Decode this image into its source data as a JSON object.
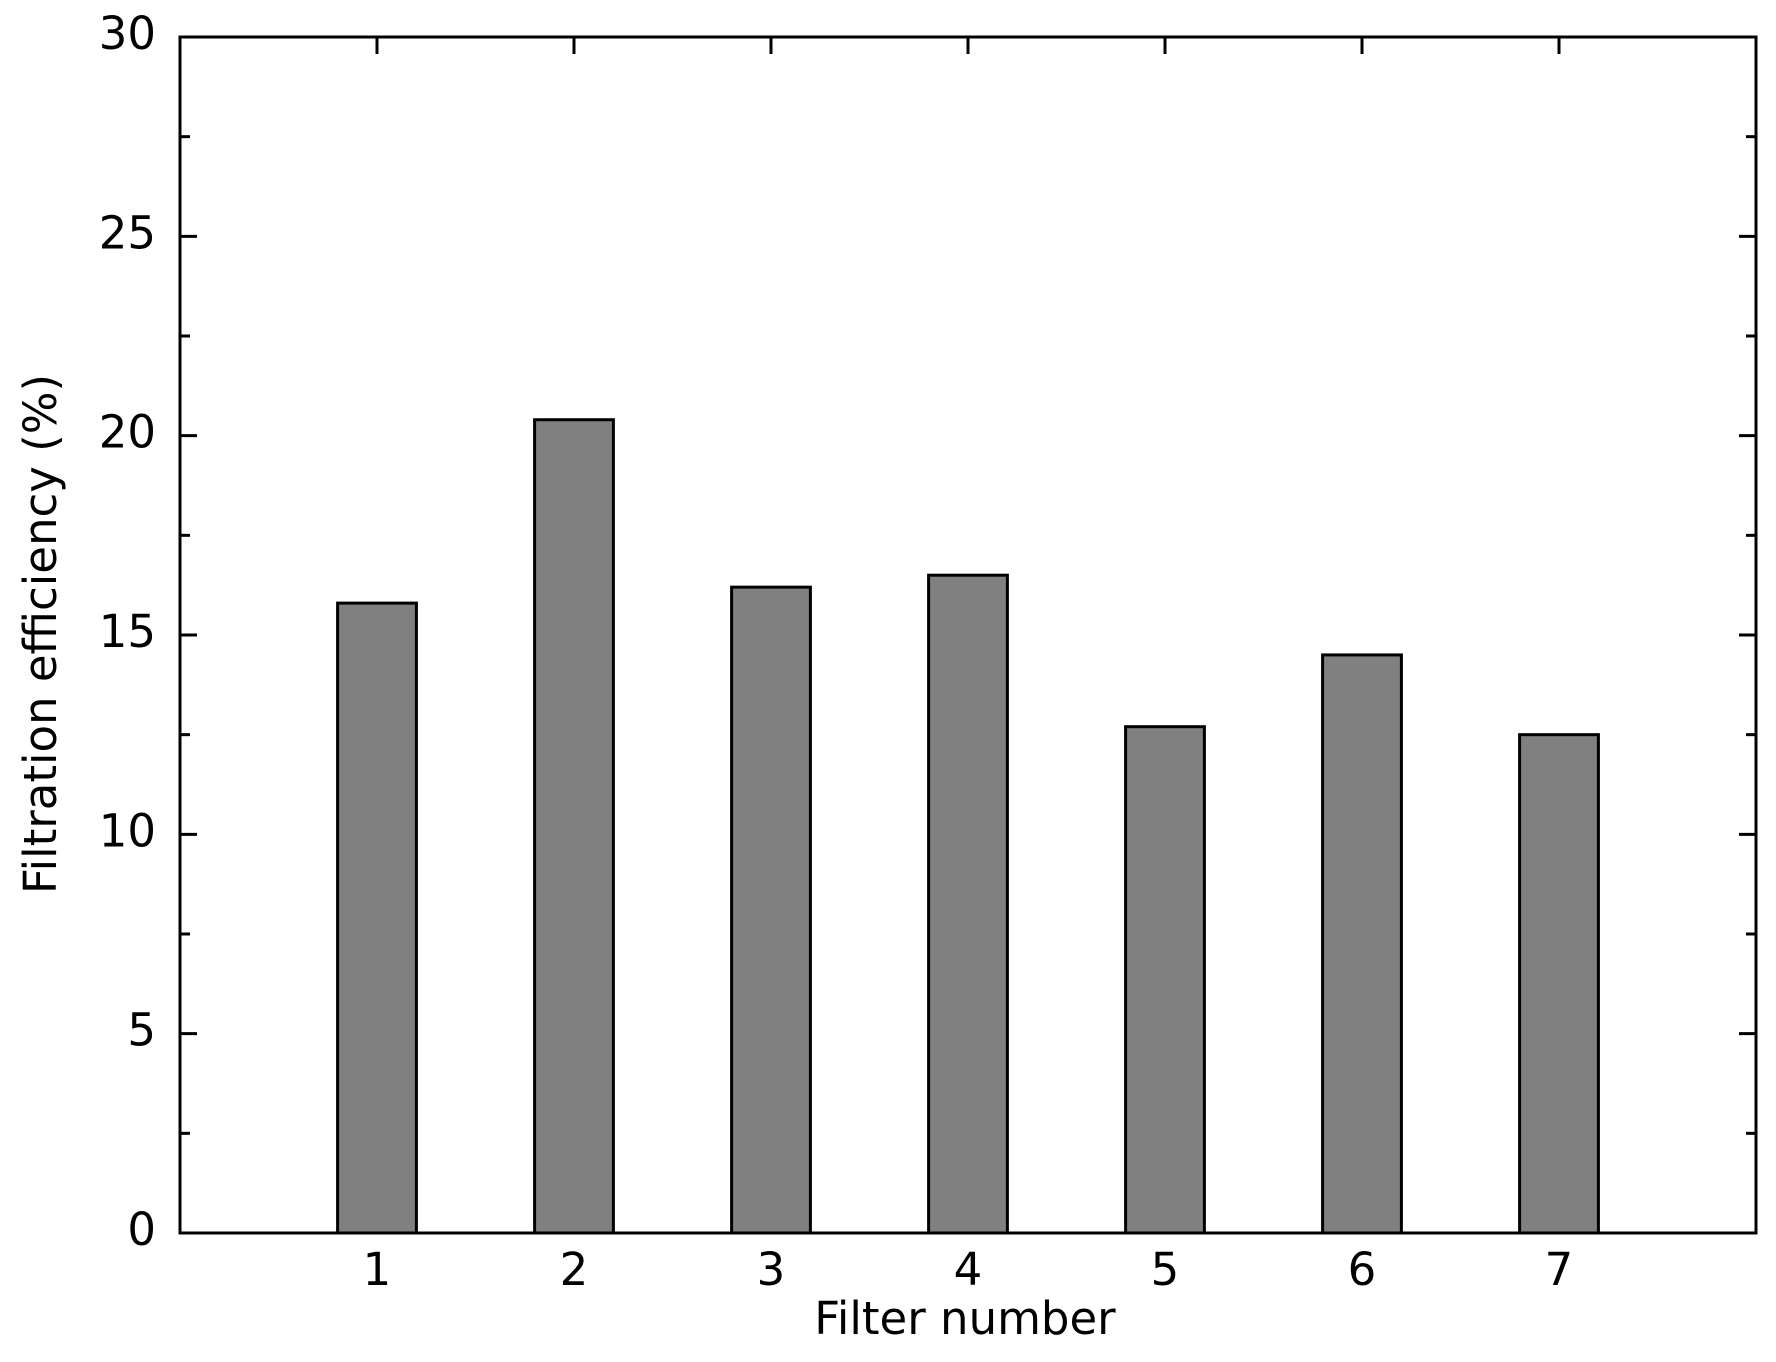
{
  "chart_data": {
    "type": "bar",
    "x_label": "Filter number",
    "y_label": "Filtration efficiency (%)",
    "x": [
      1,
      2,
      3,
      4,
      5,
      6,
      7
    ],
    "values": [
      15.8,
      20.4,
      16.2,
      16.5,
      12.7,
      14.5,
      12.5
    ],
    "color": "#808080",
    "xlim": [
      0,
      8
    ],
    "xticks": [
      1,
      2,
      3,
      4,
      5,
      6,
      7
    ],
    "ylim": [
      0,
      30
    ],
    "yticks": [
      0,
      5,
      10,
      15,
      20,
      25,
      30
    ],
    "yminorticks": [
      2.5,
      7.5,
      12.5,
      17.5,
      22.5,
      27.5
    ],
    "grid": false
  }
}
